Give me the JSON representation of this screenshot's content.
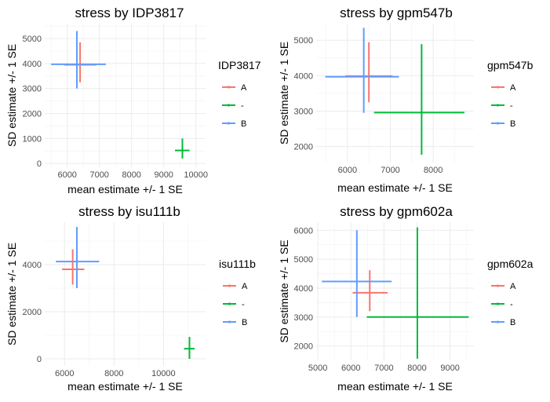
{
  "chart_data": [
    {
      "type": "crosshair",
      "title": "stress by IDP3817",
      "xlabel": "mean estimate +/- 1 SE",
      "ylabel": "SD estimate +/- 1 SE",
      "xlim": [
        5300,
        10300
      ],
      "ylim": [
        -150,
        5600
      ],
      "xticks": [
        6000,
        7000,
        8000,
        9000,
        10000
      ],
      "yticks": [
        0,
        1000,
        2000,
        3000,
        4000,
        5000
      ],
      "grid": true,
      "legend": {
        "title": "IDP3817",
        "position": "right"
      },
      "series": [
        {
          "name": "A",
          "color": "#F8766D",
          "x": 6400,
          "x_lo": 5900,
          "x_hi": 6900,
          "y": 3950,
          "y_lo": 3250,
          "y_hi": 4850
        },
        {
          "name": "-",
          "color": "#00BA38",
          "x": 9580,
          "x_lo": 9350,
          "x_hi": 9800,
          "y": 520,
          "y_lo": 200,
          "y_hi": 1000
        },
        {
          "name": "B",
          "color": "#619CFF",
          "x": 6300,
          "x_lo": 5500,
          "x_hi": 7200,
          "y": 3970,
          "y_lo": 3000,
          "y_hi": 5300
        }
      ]
    },
    {
      "type": "crosshair",
      "title": "stress by gpm547b",
      "xlabel": "mean estimate +/- 1 SE",
      "ylabel": "SD estimate +/- 1 SE",
      "xlim": [
        5270,
        8950
      ],
      "ylim": [
        1550,
        5470
      ],
      "xticks": [
        6000,
        7000,
        8000
      ],
      "yticks": [
        2000,
        3000,
        4000,
        5000
      ],
      "grid": true,
      "legend": {
        "title": "gpm547b",
        "position": "right"
      },
      "series": [
        {
          "name": "A",
          "color": "#F8766D",
          "x": 6500,
          "x_lo": 5950,
          "x_hi": 7050,
          "y": 3990,
          "y_lo": 3250,
          "y_hi": 4940
        },
        {
          "name": "-",
          "color": "#00BA38",
          "x": 7730,
          "x_lo": 6620,
          "x_hi": 8730,
          "y": 2960,
          "y_lo": 1770,
          "y_hi": 4890
        },
        {
          "name": "B",
          "color": "#619CFF",
          "x": 6380,
          "x_lo": 5480,
          "x_hi": 7200,
          "y": 3970,
          "y_lo": 2950,
          "y_hi": 5350
        }
      ]
    },
    {
      "type": "crosshair",
      "title": "stress by isu111b",
      "xlabel": "mean estimate +/- 1 SE",
      "ylabel": "SD estimate +/- 1 SE",
      "xlim": [
        5200,
        11700
      ],
      "ylim": [
        -300,
        5800
      ],
      "xticks": [
        6000,
        8000,
        10000
      ],
      "yticks": [
        0,
        2000,
        4000
      ],
      "grid": true,
      "legend": {
        "title": "isu111b",
        "position": "right"
      },
      "series": [
        {
          "name": "A",
          "color": "#F8766D",
          "x": 6330,
          "x_lo": 5900,
          "x_hi": 6800,
          "y": 3800,
          "y_lo": 3150,
          "y_hi": 4650
        },
        {
          "name": "-",
          "color": "#00BA38",
          "x": 11050,
          "x_lo": 10830,
          "x_hi": 11260,
          "y": 430,
          "y_lo": 0,
          "y_hi": 930
        },
        {
          "name": "B",
          "color": "#619CFF",
          "x": 6500,
          "x_lo": 5650,
          "x_hi": 7400,
          "y": 4130,
          "y_lo": 3000,
          "y_hi": 5600
        }
      ]
    },
    {
      "type": "crosshair",
      "title": "stress by gpm602a",
      "xlabel": "mean estimate +/- 1 SE",
      "ylabel": "SD estimate +/- 1 SE",
      "xlim": [
        4950,
        9720
      ],
      "ylim": [
        1500,
        6280
      ],
      "xticks": [
        5000,
        6000,
        7000,
        8000,
        9000
      ],
      "yticks": [
        2000,
        3000,
        4000,
        5000,
        6000
      ],
      "grid": true,
      "legend": {
        "title": "gpm602a",
        "position": "right"
      },
      "series": [
        {
          "name": "A",
          "color": "#F8766D",
          "x": 6570,
          "x_lo": 6050,
          "x_hi": 7110,
          "y": 3840,
          "y_lo": 3200,
          "y_hi": 4620
        },
        {
          "name": "-",
          "color": "#00BA38",
          "x": 8010,
          "x_lo": 6480,
          "x_hi": 9560,
          "y": 3000,
          "y_lo": 1560,
          "y_hi": 6100
        },
        {
          "name": "B",
          "color": "#619CFF",
          "x": 6180,
          "x_lo": 5120,
          "x_hi": 7230,
          "y": 4230,
          "y_lo": 3000,
          "y_hi": 6000
        }
      ]
    }
  ]
}
